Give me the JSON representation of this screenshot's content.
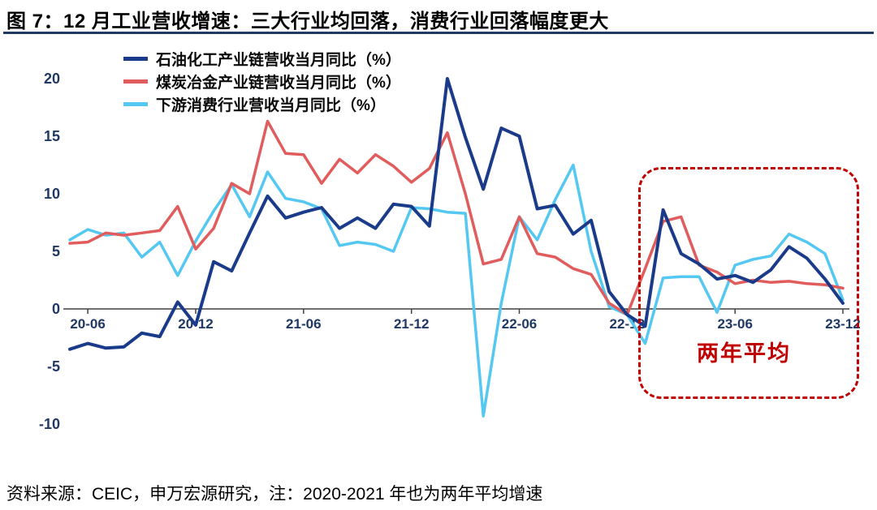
{
  "header": {
    "title": "图 7：12 月工业营收增速：三大行业均回落，消费行业回落幅度更大"
  },
  "footer": {
    "source_note": "资料来源：CEIC，申万宏源研究，注：2020-2021 年也为两年平均增速"
  },
  "colors": {
    "title_divider": "#1F3864",
    "axis_label": "#1F3864",
    "annotation_red": "#C00000",
    "series_petrochemical": "#1A3A8A",
    "series_coal_metallurgy": "#E15C5C",
    "series_consumer": "#55C8F2"
  },
  "chart_data": {
    "type": "line",
    "title": "12 月工业营收增速：三大行业均回落，消费行业回落幅度更大",
    "xlabel": "",
    "ylabel": "",
    "ylim": [
      -10,
      20
    ],
    "yticks": [
      20,
      15,
      10,
      5,
      0,
      -5,
      -10
    ],
    "grid": false,
    "legend_position": "top-left",
    "x_tick_labels": [
      "20-06",
      "20-12",
      "21-06",
      "21-12",
      "22-06",
      "22-12",
      "23-06",
      "23-12"
    ],
    "x": [
      "2020-05",
      "2020-06",
      "2020-07",
      "2020-08",
      "2020-09",
      "2020-10",
      "2020-11",
      "2020-12",
      "2021-01",
      "2021-02",
      "2021-03",
      "2021-04",
      "2021-05",
      "2021-06",
      "2021-07",
      "2021-08",
      "2021-09",
      "2021-10",
      "2021-11",
      "2021-12",
      "2022-01",
      "2022-02",
      "2022-03",
      "2022-04",
      "2022-05",
      "2022-06",
      "2022-07",
      "2022-08",
      "2022-09",
      "2022-10",
      "2022-11",
      "2022-12",
      "2023-01",
      "2023-02",
      "2023-03",
      "2023-04",
      "2023-05",
      "2023-06",
      "2023-07",
      "2023-08",
      "2023-09",
      "2023-10",
      "2023-11",
      "2023-12"
    ],
    "series": [
      {
        "name": "石油化工产业链营收当月同比（%）",
        "color": "#1A3A8A",
        "values": [
          -3.5,
          -3.0,
          -3.4,
          -3.3,
          -2.1,
          -2.4,
          0.6,
          -1.4,
          4.1,
          3.3,
          6.6,
          9.8,
          7.9,
          8.4,
          8.8,
          7.0,
          7.9,
          7.0,
          9.1,
          8.9,
          7.2,
          20.0,
          14.9,
          10.4,
          15.7,
          15.0,
          8.7,
          9.0,
          6.5,
          7.7,
          1.5,
          -0.5,
          -1.5,
          8.6,
          4.8,
          3.9,
          2.6,
          2.9,
          2.3,
          3.4,
          5.4,
          4.4,
          2.6,
          0.5
        ]
      },
      {
        "name": "煤炭冶金产业链营收当月同比（%）",
        "color": "#E15C5C",
        "values": [
          5.7,
          5.8,
          6.6,
          6.4,
          6.6,
          6.8,
          8.9,
          5.2,
          7.0,
          10.9,
          10.0,
          16.3,
          13.5,
          13.4,
          10.9,
          13.0,
          11.8,
          13.4,
          12.4,
          11.0,
          12.2,
          15.3,
          10.0,
          3.9,
          4.3,
          8.0,
          4.8,
          4.5,
          3.5,
          3.0,
          0.5,
          -0.5,
          3.5,
          7.6,
          8.0,
          3.8,
          3.2,
          2.2,
          2.5,
          2.3,
          2.4,
          2.2,
          2.1,
          1.8
        ]
      },
      {
        "name": "下游消费行业营收当月同比（%）",
        "color": "#55C8F2",
        "values": [
          6.0,
          6.9,
          6.4,
          6.6,
          4.5,
          5.8,
          2.9,
          5.9,
          8.5,
          10.8,
          8.0,
          11.9,
          9.6,
          9.3,
          8.7,
          5.5,
          5.8,
          5.6,
          5.0,
          8.8,
          8.7,
          8.4,
          8.3,
          -9.3,
          0.5,
          8.0,
          6.0,
          9.5,
          12.5,
          5.0,
          0.2,
          -0.5,
          -3.0,
          2.7,
          2.8,
          2.8,
          -0.3,
          3.8,
          4.3,
          4.6,
          6.5,
          5.8,
          4.8,
          0.8
        ]
      }
    ],
    "annotation": {
      "label": "两年平均",
      "box_range": [
        "2023-01",
        "2023-12"
      ]
    }
  }
}
